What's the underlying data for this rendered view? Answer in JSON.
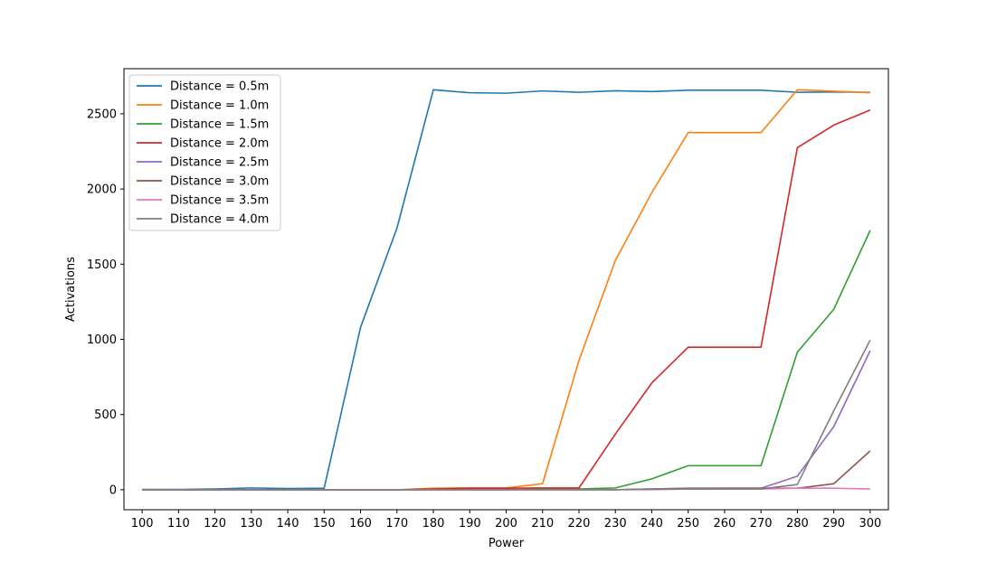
{
  "chart_data": {
    "type": "line",
    "title": "",
    "xlabel": "Power",
    "ylabel": "Activations",
    "x": [
      100,
      110,
      120,
      130,
      140,
      150,
      160,
      170,
      180,
      190,
      200,
      210,
      220,
      230,
      240,
      250,
      260,
      270,
      280,
      290,
      300
    ],
    "x_tick_labels": [
      "100",
      "110",
      "120",
      "130",
      "140",
      "150",
      "160",
      "170",
      "180",
      "190",
      "200",
      "210",
      "220",
      "230",
      "240",
      "250",
      "260",
      "270",
      "280",
      "290",
      "300"
    ],
    "y_ticks": [
      0,
      500,
      1000,
      1500,
      2000,
      2500
    ],
    "y_tick_labels": [
      "0",
      "500",
      "1000",
      "1500",
      "2000",
      "2500"
    ],
    "xlim": [
      95,
      305
    ],
    "ylim": [
      -133,
      2800
    ],
    "grid": false,
    "legend_position": "top-left",
    "series": [
      {
        "name": "Distance = 0.5m",
        "color": "#1f77b4",
        "values": [
          2,
          2,
          5,
          12,
          8,
          10,
          1080,
          1740,
          2660,
          2640,
          2637,
          2652,
          2643,
          2653,
          2648,
          2657,
          2657,
          2657,
          2643,
          2645,
          2643
        ]
      },
      {
        "name": "Distance = 1.0m",
        "color": "#ff7f0e",
        "values": [
          0,
          0,
          0,
          0,
          0,
          0,
          0,
          0,
          10,
          12,
          12,
          40,
          860,
          1525,
          1975,
          2375,
          2375,
          2375,
          2660,
          2650,
          2640
        ]
      },
      {
        "name": "Distance = 1.5m",
        "color": "#2ca02c",
        "values": [
          0,
          0,
          0,
          0,
          0,
          0,
          0,
          0,
          0,
          0,
          0,
          5,
          5,
          12,
          72,
          160,
          160,
          160,
          915,
          1200,
          1725
        ]
      },
      {
        "name": "Distance = 2.0m",
        "color": "#d62728",
        "values": [
          0,
          0,
          0,
          0,
          0,
          0,
          0,
          0,
          5,
          10,
          10,
          12,
          12,
          370,
          710,
          948,
          948,
          948,
          2275,
          2425,
          2525
        ]
      },
      {
        "name": "Distance = 2.5m",
        "color": "#9467bd",
        "values": [
          0,
          0,
          0,
          0,
          0,
          0,
          0,
          0,
          0,
          0,
          0,
          0,
          0,
          0,
          5,
          8,
          10,
          10,
          90,
          420,
          925
        ]
      },
      {
        "name": "Distance = 3.0m",
        "color": "#8c564b",
        "values": [
          0,
          0,
          0,
          0,
          0,
          0,
          0,
          0,
          0,
          0,
          0,
          0,
          0,
          0,
          5,
          10,
          10,
          10,
          10,
          40,
          258
        ]
      },
      {
        "name": "Distance = 3.5m",
        "color": "#e377c2",
        "values": [
          0,
          0,
          0,
          0,
          0,
          0,
          0,
          0,
          0,
          0,
          0,
          0,
          0,
          0,
          0,
          5,
          5,
          5,
          10,
          10,
          5
        ]
      },
      {
        "name": "Distance = 4.0m",
        "color": "#7f7f7f",
        "values": [
          0,
          0,
          0,
          0,
          0,
          0,
          0,
          0,
          0,
          0,
          0,
          0,
          0,
          0,
          5,
          5,
          5,
          5,
          35,
          525,
          995
        ]
      }
    ]
  }
}
